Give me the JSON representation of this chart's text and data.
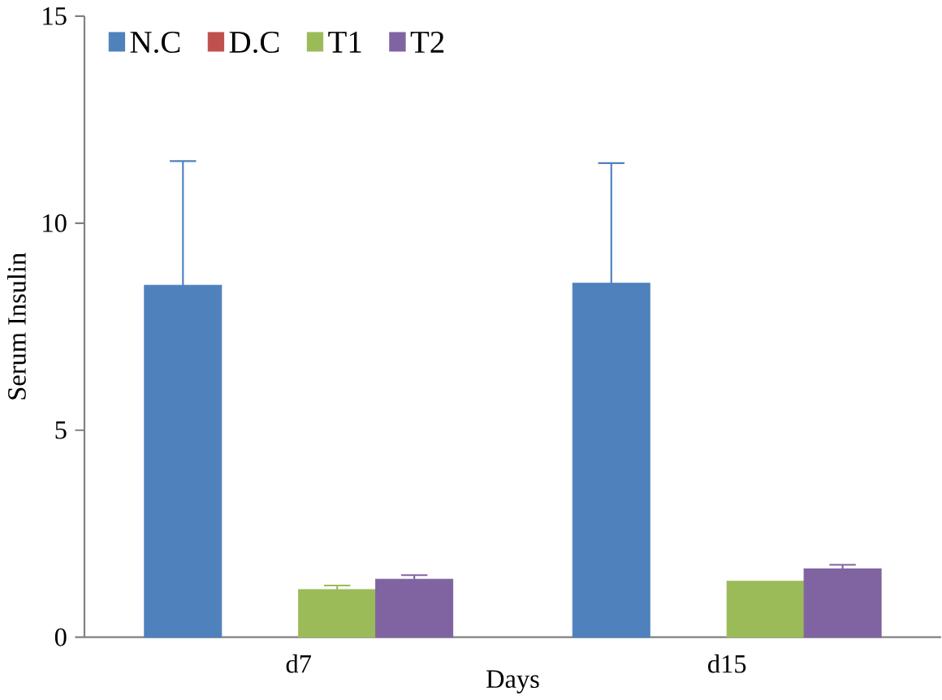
{
  "chart_data": {
    "type": "bar",
    "xlabel": "Days",
    "ylabel": "Serum Insulin",
    "categories": [
      "d7",
      "d15"
    ],
    "series": [
      {
        "name": "N.C",
        "color": "#4f81bd",
        "values": [
          8.5,
          8.55
        ],
        "errors": [
          3.0,
          2.9
        ]
      },
      {
        "name": "D.C",
        "color": "#c0504d",
        "values": [
          null,
          null
        ]
      },
      {
        "name": "T1",
        "color": "#9bbb59",
        "values": [
          1.15,
          1.35
        ],
        "errors": [
          0.1,
          null
        ]
      },
      {
        "name": "T2",
        "color": "#8064a2",
        "values": [
          1.4,
          1.65
        ],
        "errors": [
          0.1,
          0.1
        ]
      }
    ],
    "ylim": [
      0,
      15
    ],
    "yticks": [
      0,
      5,
      10,
      15
    ],
    "grid": false,
    "legend": "top left"
  }
}
